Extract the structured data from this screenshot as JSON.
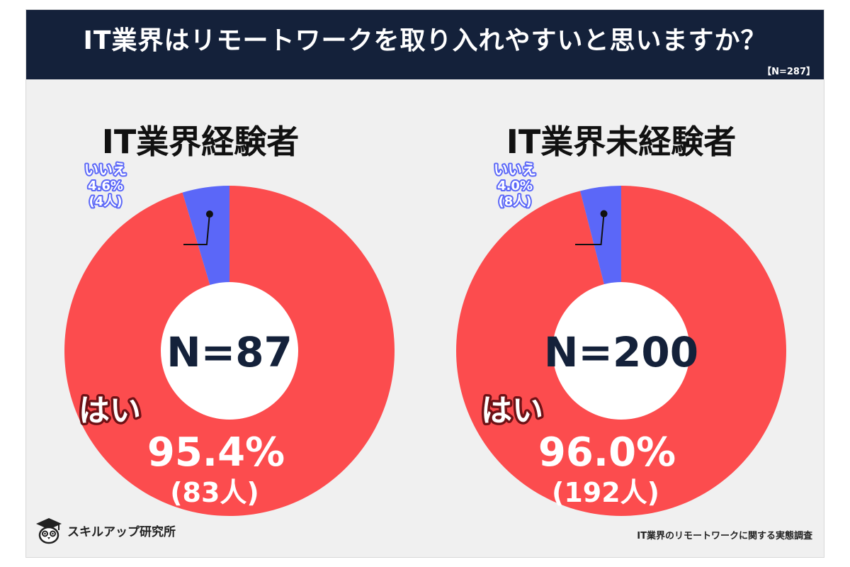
{
  "header": {
    "title": "IT業界はリモートワークを取り入れやすいと思いますか？",
    "total_n": "【N=287】"
  },
  "colors": {
    "yes": "#fc4c4e",
    "no": "#5b67f8",
    "banner": "#14213a"
  },
  "chart_data": [
    {
      "type": "pie",
      "title": "IT業界経験者",
      "center_label": "N=87",
      "slices": [
        {
          "label": "いいえ",
          "value": 4.6,
          "percent_label": "4.6%",
          "count_label": "(4人)",
          "color": "#5b67f8"
        },
        {
          "label": "はい",
          "value": 95.4,
          "percent_label": "95.4%",
          "count_label": "(83人)",
          "color": "#fc4c4e"
        }
      ]
    },
    {
      "type": "pie",
      "title": "IT業界未経験者",
      "center_label": "N=200",
      "slices": [
        {
          "label": "いいえ",
          "value": 4.0,
          "percent_label": "4.0%",
          "count_label": "(8人)",
          "color": "#5b67f8"
        },
        {
          "label": "はい",
          "value": 96.0,
          "percent_label": "96.0%",
          "count_label": "(192人)",
          "color": "#fc4c4e"
        }
      ]
    }
  ],
  "footer": {
    "brand": "スキルアップ研究所",
    "source": "IT業界のリモートワークに関する実態調査",
    "logo_icon": "owl-graduate-icon"
  }
}
